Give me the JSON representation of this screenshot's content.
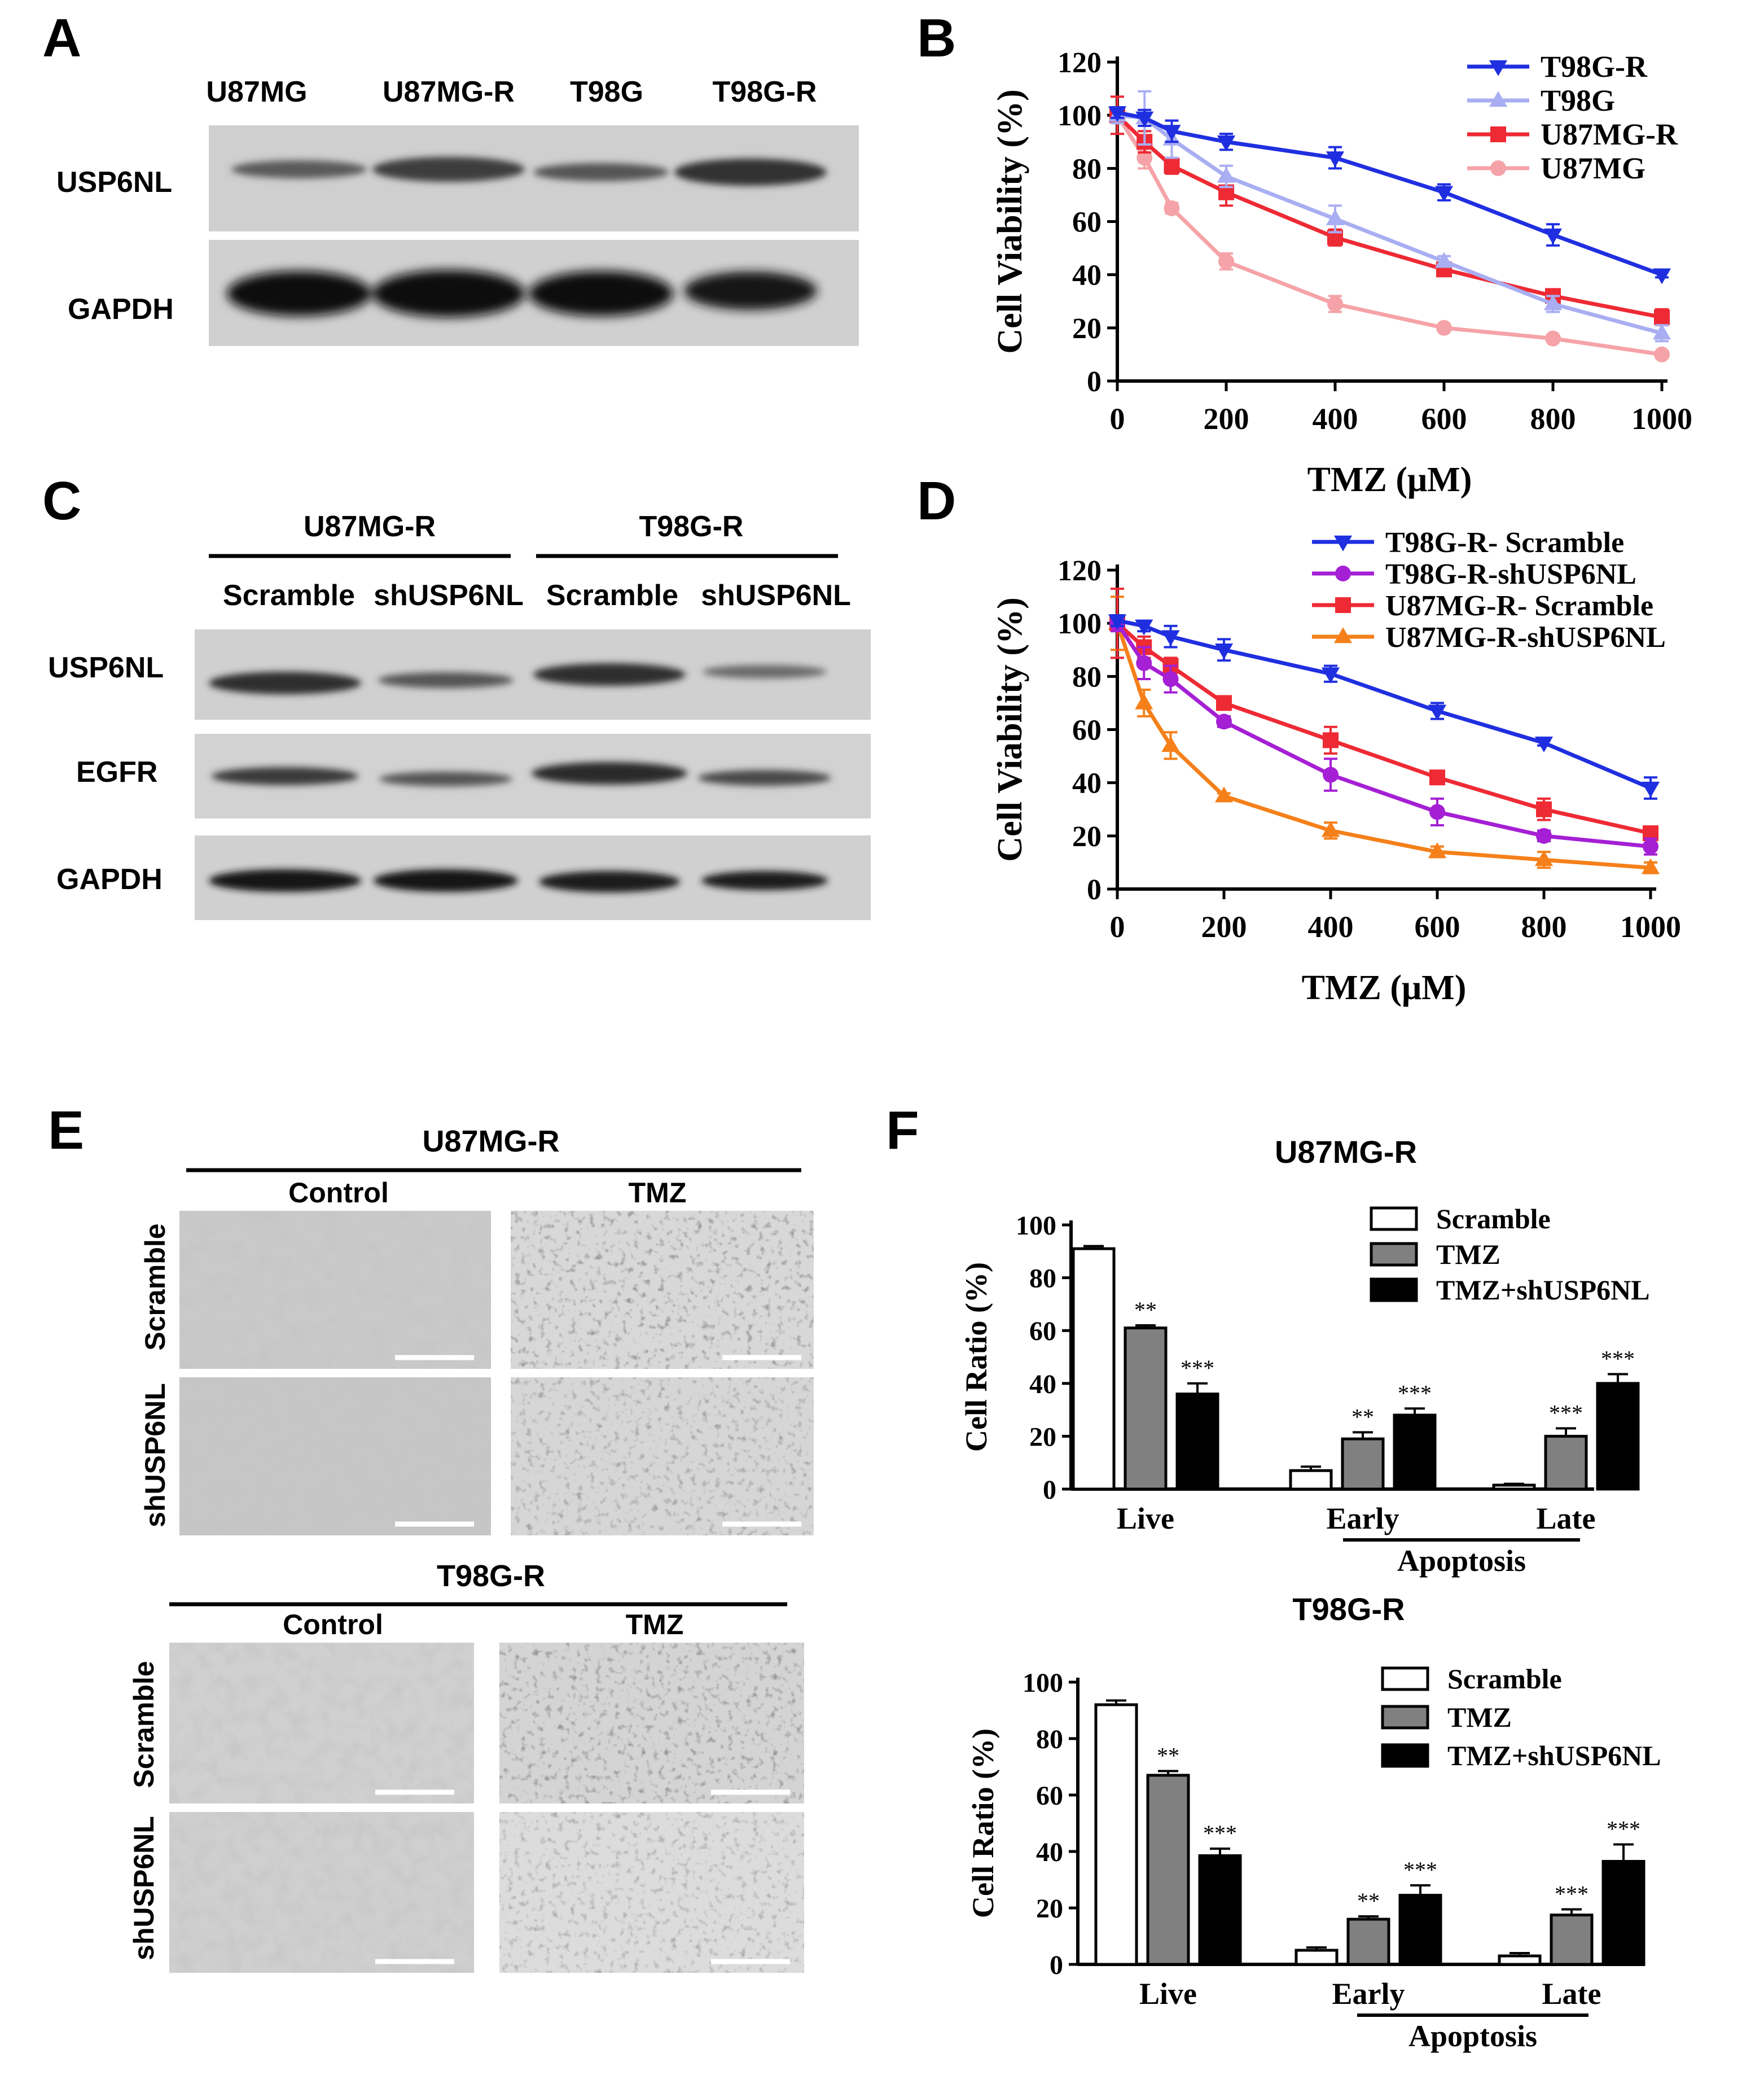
{
  "panel_letters": [
    "A",
    "B",
    "C",
    "D",
    "E",
    "F"
  ],
  "panelA": {
    "columns": [
      "U87MG",
      "U87MG-R",
      "T98G",
      "T98G-R"
    ],
    "rows": [
      "USP6NL",
      "GAPDH"
    ]
  },
  "panelC": {
    "groups": [
      "U87MG-R",
      "T98G-R"
    ],
    "columns": [
      "Scramble",
      "shUSP6NL",
      "Scramble",
      "shUSP6NL"
    ],
    "rows": [
      "USP6NL",
      "EGFR",
      "GAPDH"
    ]
  },
  "panelE": {
    "blocks": [
      {
        "title": "U87MG-R",
        "cols": [
          "Control",
          "TMZ"
        ],
        "rows": [
          "Scramble",
          "shUSP6NL"
        ]
      },
      {
        "title": "T98G-R",
        "cols": [
          "Control",
          "TMZ"
        ],
        "rows": [
          "Scramble",
          "shUSP6NL"
        ]
      }
    ]
  },
  "colors": {
    "T98G-R": "#1f2fe0",
    "T98G": "#a9aef2",
    "U87MG-R": "#ee2a34",
    "U87MG": "#f5a3a8",
    "T98G-R- Scramble": "#1f2fe0",
    "T98G-R-shUSP6NL": "#a51fd4",
    "U87MG-R- Scramble": "#ee2a34",
    "U87MG-R-shUSP6NL": "#f5801a"
  },
  "chart_data": [
    {
      "id": "B",
      "type": "line",
      "xlabel": "TMZ (μM)",
      "ylabel": "Cell Viability (%)",
      "xlim": [
        0,
        1000
      ],
      "ylim": [
        0,
        120
      ],
      "xticks": [
        "0",
        "200",
        "400",
        "600",
        "800",
        "1000"
      ],
      "yticks": [
        "0",
        "20",
        "40",
        "60",
        "80",
        "100",
        "120"
      ],
      "legend_position": "top-right",
      "x": [
        0,
        50,
        100,
        200,
        400,
        600,
        800,
        1000
      ],
      "series": [
        {
          "name": "T98G-R",
          "marker": "triangle-down",
          "values": [
            101,
            99,
            94,
            90,
            84,
            71,
            55,
            40
          ],
          "err": [
            2,
            3,
            4,
            3,
            4,
            3,
            4,
            1
          ]
        },
        {
          "name": "T98G",
          "marker": "triangle-up",
          "values": [
            100,
            99,
            91,
            77,
            61,
            45,
            29,
            18
          ],
          "err": [
            3,
            10,
            7,
            4,
            5,
            2,
            3,
            3
          ]
        },
        {
          "name": "U87MG-R",
          "marker": "square",
          "values": [
            100,
            90,
            81,
            71,
            54,
            42,
            32,
            24
          ],
          "err": [
            7,
            4,
            3,
            5,
            3,
            2,
            2,
            3
          ]
        },
        {
          "name": "U87MG",
          "marker": "circle",
          "values": [
            100,
            84,
            65,
            45,
            29,
            20,
            16,
            10
          ],
          "err": [
            3,
            4,
            2,
            3,
            3,
            1,
            1,
            1
          ]
        }
      ]
    },
    {
      "id": "D",
      "type": "line",
      "xlabel": "TMZ (μM)",
      "ylabel": "Cell Viability (%)",
      "xlim": [
        0,
        1000
      ],
      "ylim": [
        0,
        120
      ],
      "xticks": [
        "0",
        "200",
        "400",
        "600",
        "800",
        "1000"
      ],
      "yticks": [
        "0",
        "20",
        "40",
        "60",
        "80",
        "100",
        "120"
      ],
      "legend_position": "top-right",
      "x": [
        0,
        50,
        100,
        200,
        400,
        600,
        800,
        1000
      ],
      "series": [
        {
          "name": "T98G-R- Scramble",
          "marker": "triangle-down",
          "values": [
            101,
            99,
            95,
            90,
            81,
            67,
            55,
            38
          ],
          "err": [
            2,
            2,
            4,
            4,
            3,
            3,
            1,
            4
          ]
        },
        {
          "name": "T98G-R-shUSP6NL",
          "marker": "circle",
          "values": [
            100,
            85,
            79,
            63,
            43,
            29,
            20,
            16
          ],
          "err": [
            3,
            6,
            5,
            2,
            6,
            5,
            2,
            3
          ]
        },
        {
          "name": "U87MG-R- Scramble",
          "marker": "square",
          "values": [
            100,
            91,
            84,
            70,
            56,
            42,
            30,
            21
          ],
          "err": [
            13,
            4,
            3,
            2,
            5,
            2,
            4,
            2
          ]
        },
        {
          "name": "U87MG-R-shUSP6NL",
          "marker": "triangle-up",
          "values": [
            100,
            70,
            54,
            35,
            22,
            14,
            11,
            8
          ],
          "err": [
            10,
            5,
            5,
            1,
            3,
            2,
            3,
            2
          ]
        }
      ]
    },
    {
      "id": "F-top",
      "type": "bar",
      "title": "U87MG-R",
      "ylabel": "Cell Ratio (%)",
      "ylim": [
        0,
        100
      ],
      "yticks": [
        "0",
        "20",
        "40",
        "60",
        "80",
        "100"
      ],
      "categories": [
        "Live",
        "Early",
        "Late"
      ],
      "group_label": "Apoptosis",
      "legend_position": "top-right",
      "series": [
        {
          "name": "Scramble",
          "fill": "#ffffff",
          "values": [
            91,
            7,
            1.5
          ],
          "err": [
            1,
            1.5,
            0.5
          ],
          "sig": [
            "",
            "",
            ""
          ]
        },
        {
          "name": "TMZ",
          "fill": "#808080",
          "values": [
            61,
            19,
            20
          ],
          "err": [
            1,
            2.5,
            3
          ],
          "sig": [
            "**",
            "**",
            "***"
          ]
        },
        {
          "name": "TMZ+shUSP6NL",
          "fill": "#000000",
          "values": [
            36,
            28,
            40
          ],
          "err": [
            4,
            2.5,
            3.5
          ],
          "sig": [
            "***",
            "***",
            "***"
          ]
        }
      ]
    },
    {
      "id": "F-bottom",
      "type": "bar",
      "title": "T98G-R",
      "ylabel": "Cell Ratio (%)",
      "ylim": [
        0,
        100
      ],
      "yticks": [
        "0",
        "20",
        "40",
        "60",
        "80",
        "100"
      ],
      "categories": [
        "Live",
        "Early",
        "Late"
      ],
      "group_label": "Apoptosis",
      "legend_position": "top-right",
      "series": [
        {
          "name": "Scramble",
          "fill": "#ffffff",
          "values": [
            92,
            5,
            3
          ],
          "err": [
            1.5,
            1,
            1
          ],
          "sig": [
            "",
            "",
            ""
          ]
        },
        {
          "name": "TMZ",
          "fill": "#808080",
          "values": [
            67,
            16,
            17.5
          ],
          "err": [
            1.5,
            1,
            2
          ],
          "sig": [
            "**",
            "**",
            "***"
          ]
        },
        {
          "name": "TMZ+shUSP6NL",
          "fill": "#000000",
          "values": [
            38.5,
            24.5,
            36.5
          ],
          "err": [
            2.5,
            3.5,
            6
          ],
          "sig": [
            "***",
            "***",
            "***"
          ]
        }
      ]
    }
  ]
}
